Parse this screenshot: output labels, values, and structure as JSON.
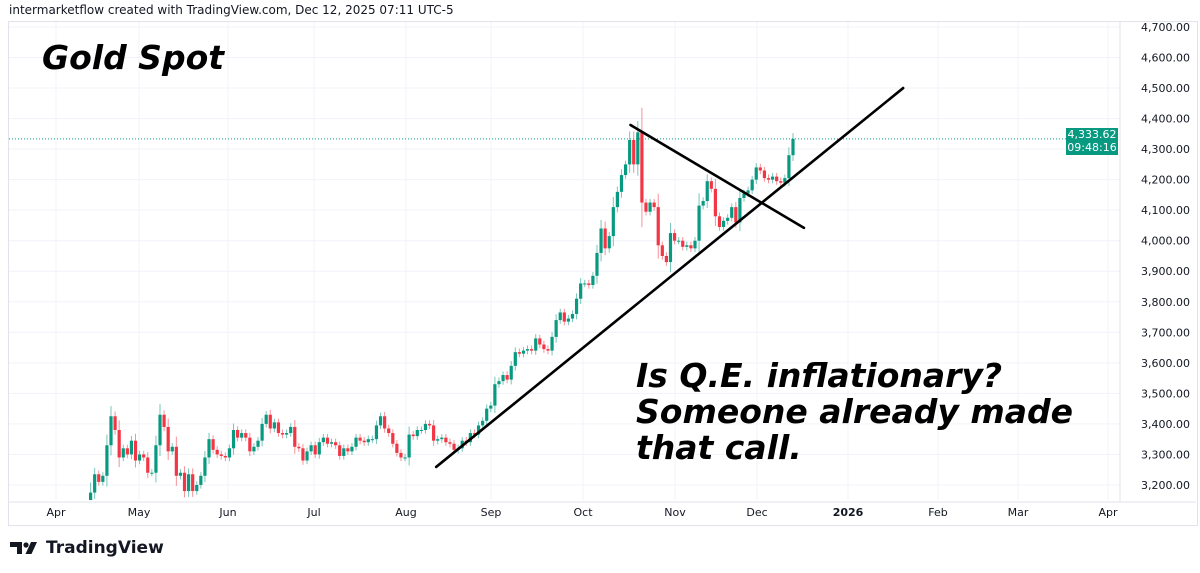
{
  "header": {
    "credit": "intermarketflow created with TradingView.com, Dec 12, 2025 07:11 UTC-5"
  },
  "chart_data": {
    "type": "candlestick",
    "title": "Gold Spot",
    "annotation": "Is Q.E. inflationary? Someone already made that call.",
    "colors": {
      "up": "#089981",
      "down": "#F23645",
      "grid": "#f0f3fa",
      "price_line": "#089981"
    },
    "y_ticks": [
      "4,700.00",
      "4,600.00",
      "4,500.00",
      "4,400.00",
      "4,300.00",
      "4,200.00",
      "4,100.00",
      "4,000.00",
      "3,900.00",
      "3,800.00",
      "3,700.00",
      "3,600.00",
      "3,500.00",
      "3,400.00",
      "3,300.00",
      "3,200.00"
    ],
    "ylim": [
      3150,
      4730
    ],
    "x_ticks": [
      "Apr",
      "May",
      "Jun",
      "Jul",
      "Aug",
      "Sep",
      "Oct",
      "Nov",
      "Dec",
      "2026",
      "Feb",
      "Mar",
      "Apr"
    ],
    "x_tick_bold": "2026",
    "range": [
      "2025-04-01",
      "2025-12-12"
    ],
    "start_open": 3120,
    "closes": [
      3130,
      3110,
      3040,
      2980,
      3000,
      2985,
      3080,
      3175,
      3235,
      3210,
      3230,
      3330,
      3425,
      3380,
      3290,
      3320,
      3300,
      3345,
      3280,
      3300,
      3290,
      3240,
      3240,
      3330,
      3430,
      3390,
      3310,
      3325,
      3230,
      3240,
      3180,
      3235,
      3180,
      3200,
      3230,
      3290,
      3350,
      3315,
      3300,
      3295,
      3290,
      3320,
      3380,
      3355,
      3370,
      3355,
      3310,
      3325,
      3345,
      3400,
      3430,
      3385,
      3405,
      3370,
      3365,
      3370,
      3390,
      3325,
      3320,
      3280,
      3310,
      3330,
      3300,
      3340,
      3355,
      3335,
      3340,
      3330,
      3295,
      3320,
      3310,
      3325,
      3355,
      3345,
      3340,
      3350,
      3350,
      3395,
      3425,
      3385,
      3370,
      3335,
      3305,
      3290,
      3290,
      3365,
      3360,
      3380,
      3380,
      3400,
      3395,
      3345,
      3350,
      3355,
      3340,
      3335,
      3315,
      3320,
      3345,
      3340,
      3370,
      3365,
      3395,
      3410,
      3450,
      3460,
      3530,
      3540,
      3560,
      3545,
      3590,
      3635,
      3630,
      3640,
      3645,
      3640,
      3680,
      3660,
      3645,
      3640,
      3685,
      3740,
      3765,
      3735,
      3745,
      3760,
      3810,
      3860,
      3860,
      3855,
      3885,
      3960,
      4040,
      3975,
      4015,
      4110,
      4160,
      4215,
      4250,
      4330,
      4250,
      4355,
      4125,
      4095,
      4125,
      4110,
      3985,
      3950,
      3930,
      4025,
      4000,
      4000,
      3980,
      3985,
      3975,
      4000,
      4115,
      4130,
      4195,
      4170,
      4080,
      4045,
      4065,
      4075,
      4110,
      4060,
      4140,
      4155,
      4165,
      4200,
      4240,
      4230,
      4205,
      4200,
      4210,
      4195,
      4190,
      4205,
      4280,
      4333.62
    ],
    "last_price": "4,333.62",
    "countdown": "09:48:16",
    "drawings": [
      {
        "name": "rising-trendline",
        "from": [
          "2025-08-12",
          3259
        ],
        "to": [
          "2026-01-20",
          4500
        ]
      },
      {
        "name": "falling-trendline",
        "from": [
          "2025-10-17",
          4379
        ],
        "to": [
          "2025-12-17",
          4042
        ]
      }
    ]
  },
  "footer": {
    "logo": "TradingView"
  }
}
